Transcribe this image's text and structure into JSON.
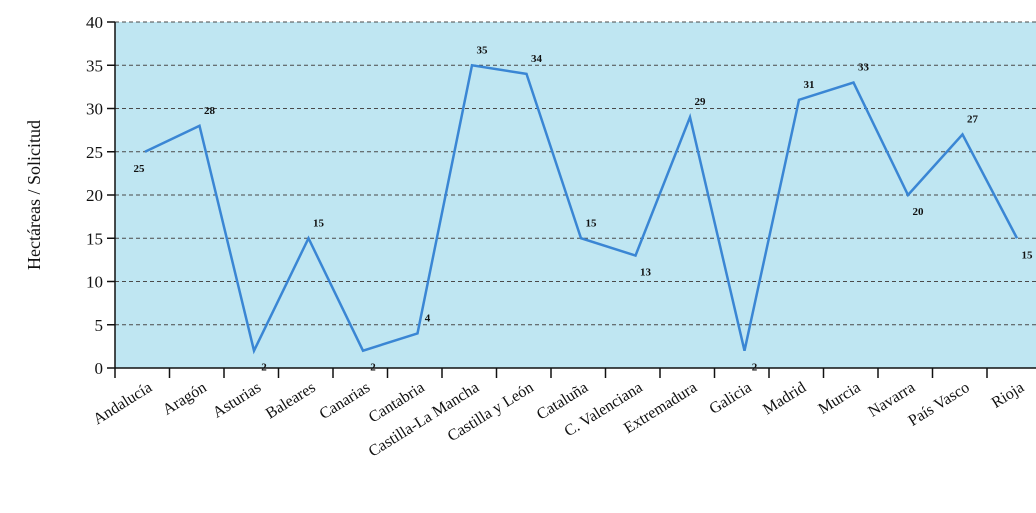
{
  "chart_data": {
    "type": "line",
    "title": "",
    "xlabel": "",
    "ylabel": "Hectáreas / Solicitud",
    "ylim": [
      0,
      40
    ],
    "yticks": [
      0,
      5,
      10,
      15,
      20,
      25,
      30,
      35,
      40
    ],
    "grid": true,
    "legend": "none",
    "colors": {
      "plot_bg": "#bfe6f2",
      "line": "#3a86d4",
      "grid": "#4a4a4a"
    },
    "categories": [
      "Andalucía",
      "Aragón",
      "Asturias",
      "Baleares",
      "Canarias",
      "Cantabria",
      "Castilla-La Mancha",
      "Castilla y León",
      "Cataluña",
      "C. Valenciana",
      "Extremadura",
      "Galicia",
      "Madrid",
      "Murcia",
      "Navarra",
      "País Vasco",
      "Rioja"
    ],
    "series": [
      {
        "values": [
          25,
          28,
          2,
          15,
          2,
          4,
          35,
          34,
          15,
          13,
          29,
          2,
          31,
          33,
          20,
          27,
          15
        ]
      }
    ]
  }
}
